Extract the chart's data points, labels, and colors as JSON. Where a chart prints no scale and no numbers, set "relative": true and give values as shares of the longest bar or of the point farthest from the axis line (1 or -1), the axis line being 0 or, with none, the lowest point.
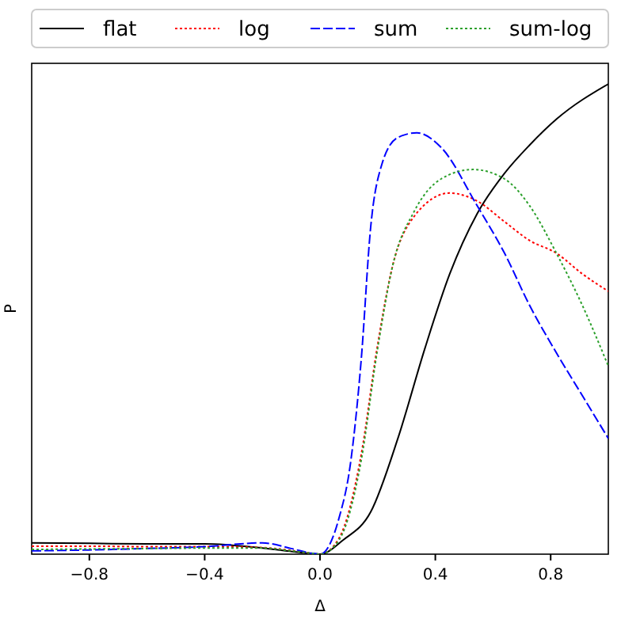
{
  "chart_data": {
    "type": "line",
    "relative": true,
    "xlabel": "Δ",
    "ylabel": "P",
    "xlim": [
      -1,
      1
    ],
    "xticks": [
      {
        "value": -0.8,
        "label": "−0.8"
      },
      {
        "value": -0.4,
        "label": "−0.4"
      },
      {
        "value": 0,
        "label": "0.0"
      },
      {
        "value": 0.4,
        "label": "0.4"
      },
      {
        "value": 0.8,
        "label": "0.8"
      }
    ],
    "legend": "top",
    "grid": false,
    "marker": "none",
    "series": [
      {
        "name": "flat",
        "color": "#000000",
        "line_style": "solid",
        "x": [
          -1,
          -0.8,
          -0.6,
          -0.4,
          -0.2,
          -0.1,
          -0.03,
          0,
          0.08,
          0.176,
          0.27,
          0.364,
          0.45,
          0.545,
          0.64,
          0.727,
          0.82,
          1.0
        ],
        "values": [
          0.024,
          0.023,
          0.022,
          0.022,
          0.013,
          0.006,
          0.001,
          0,
          0.03,
          0.09,
          0.246,
          0.438,
          0.596,
          0.724,
          0.81,
          0.87,
          0.925,
          1.0
        ]
      },
      {
        "name": "log",
        "color": "#ff0000",
        "line_style": "dotted",
        "x": [
          -1,
          -0.8,
          -0.6,
          -0.4,
          -0.2,
          -0.1,
          -0.03,
          0,
          0.066,
          0.143,
          0.198,
          0.253,
          0.325,
          0.45,
          0.545,
          0.64,
          0.727,
          0.82,
          0.91,
          1.0
        ],
        "values": [
          0.017,
          0.017,
          0.016,
          0.016,
          0.014,
          0.008,
          0.002,
          0,
          0.034,
          0.212,
          0.438,
          0.616,
          0.717,
          0.768,
          0.751,
          0.707,
          0.667,
          0.64,
          0.596,
          0.559
        ]
      },
      {
        "name": "sum",
        "color": "#0000ff",
        "line_style": "dashed",
        "x": [
          -1,
          -0.8,
          -0.6,
          -0.4,
          -0.2,
          -0.1,
          -0.03,
          0,
          0.066,
          0.105,
          0.143,
          0.176,
          0.215,
          0.27,
          0.336,
          0.42,
          0.545,
          0.64,
          0.727,
          0.82,
          0.91,
          1.0
        ],
        "values": [
          0.007,
          0.009,
          0.012,
          0.016,
          0.024,
          0.012,
          0.002,
          0,
          0.077,
          0.19,
          0.414,
          0.697,
          0.83,
          0.886,
          0.896,
          0.865,
          0.741,
          0.64,
          0.529,
          0.428,
          0.337,
          0.246
        ]
      },
      {
        "name": "sum-log",
        "color": "#2ca02c",
        "line_style": "dotted",
        "x": [
          -1,
          -0.8,
          -0.6,
          -0.4,
          -0.2,
          -0.1,
          -0.03,
          0,
          0.066,
          0.143,
          0.198,
          0.253,
          0.325,
          0.42,
          0.53,
          0.64,
          0.727,
          0.82,
          0.91,
          1.0
        ],
        "values": [
          0.01,
          0.011,
          0.012,
          0.013,
          0.013,
          0.007,
          0.002,
          0,
          0.03,
          0.2,
          0.43,
          0.616,
          0.727,
          0.798,
          0.818,
          0.798,
          0.741,
          0.64,
          0.529,
          0.4
        ]
      }
    ]
  }
}
